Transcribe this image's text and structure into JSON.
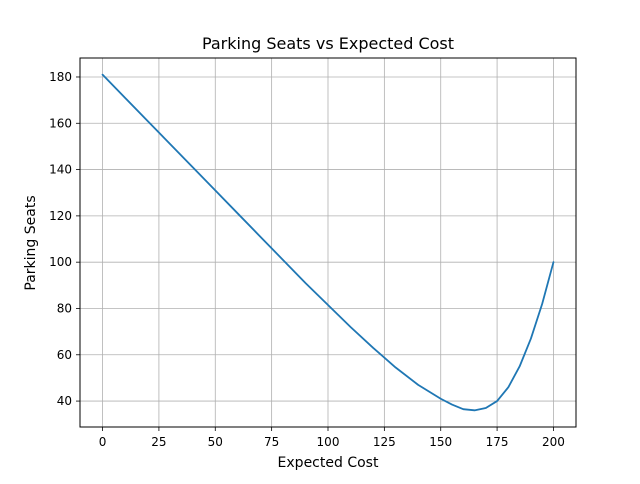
{
  "chart_data": {
    "type": "line",
    "title": "Parking Seats vs Expected Cost",
    "xlabel": "Expected Cost",
    "ylabel": "Parking Seats",
    "xlim": [
      -10,
      210
    ],
    "ylim": [
      28.8,
      188.2
    ],
    "xticks": [
      0,
      25,
      50,
      75,
      100,
      125,
      150,
      175,
      200
    ],
    "yticks": [
      40,
      60,
      80,
      100,
      120,
      140,
      160,
      180
    ],
    "grid": true,
    "legend": "none",
    "series": [
      {
        "color": "#1f77b4",
        "x": [
          0,
          10,
          20,
          30,
          40,
          50,
          60,
          70,
          80,
          90,
          100,
          110,
          120,
          130,
          140,
          150,
          155,
          160,
          165,
          170,
          175,
          180,
          185,
          190,
          195,
          200
        ],
        "y": [
          181,
          171,
          161,
          151,
          141,
          131,
          121,
          111,
          101,
          91,
          81.5,
          72,
          63,
          54.5,
          47,
          41,
          38.5,
          36.5,
          36,
          37,
          40,
          46,
          55,
          67,
          82,
          100
        ]
      }
    ]
  }
}
